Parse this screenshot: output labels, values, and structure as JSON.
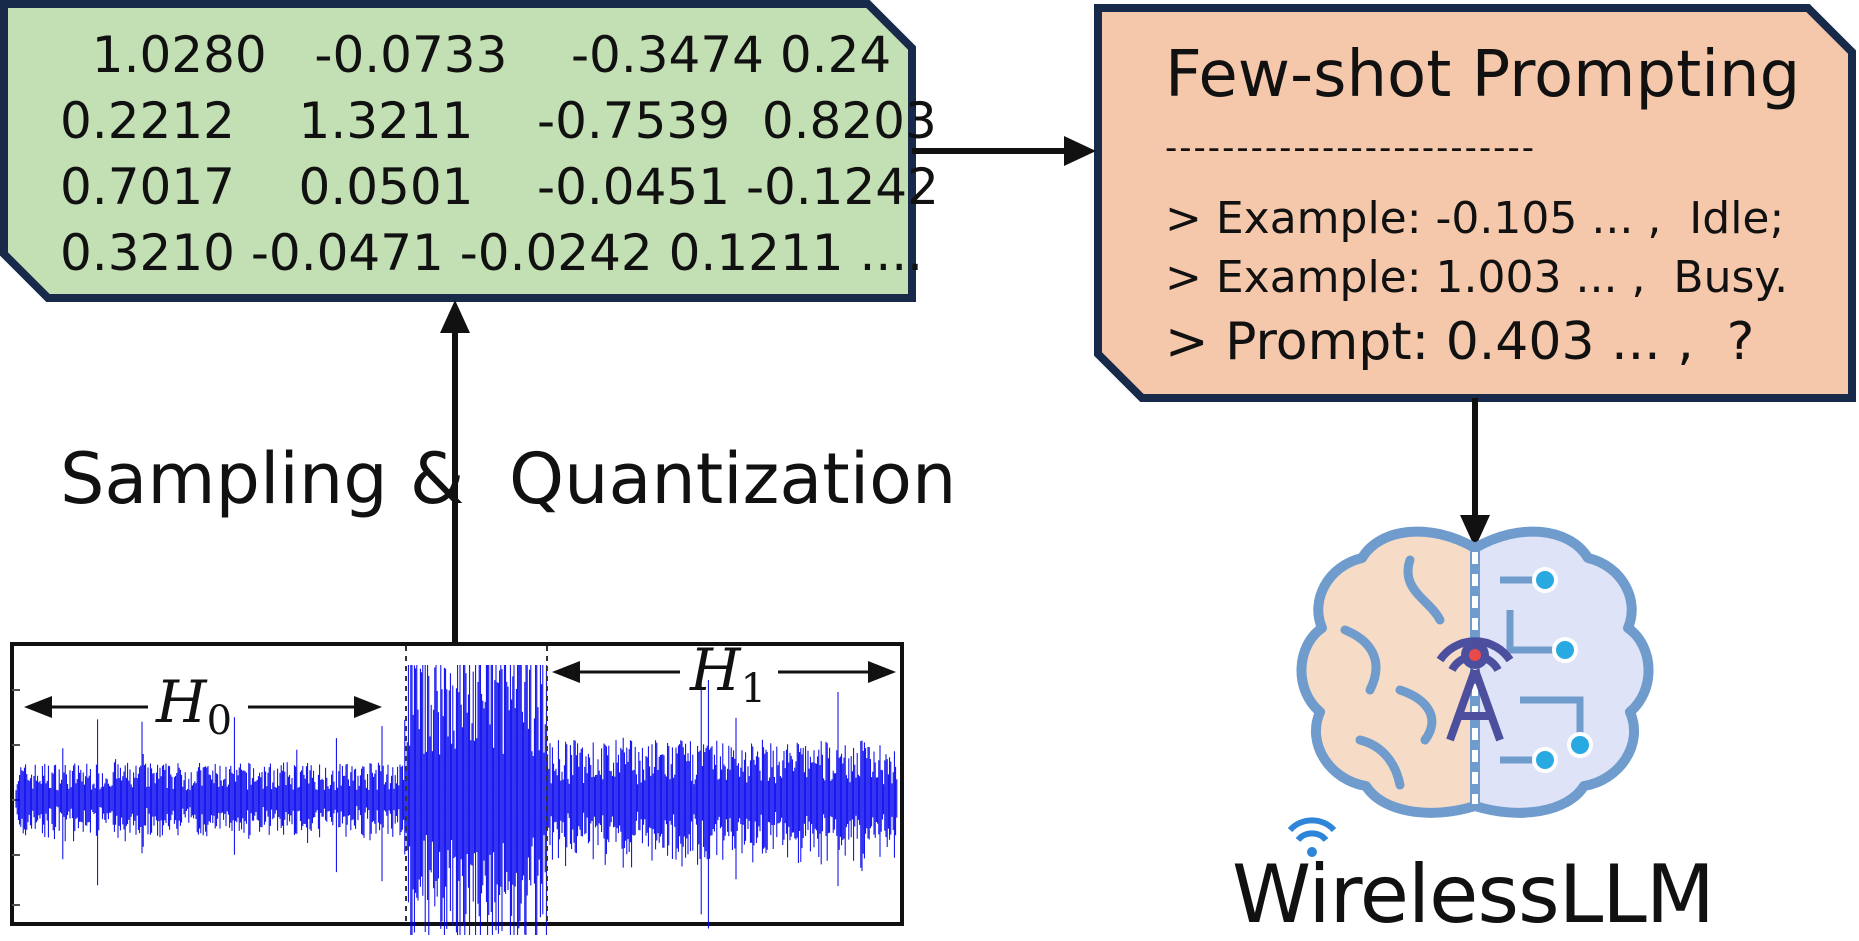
{
  "data_box": {
    "rows": [
      "  1.0280   -0.0733    -0.3474 0.24",
      "0.2212    1.3211    -0.7539  0.8203",
      "0.7017    0.0501    -0.0451 -0.1242",
      "0.3210 -0.0471 -0.0242 0.1211 ...."
    ],
    "fill": "#c3dfb4",
    "border": "#172a4a"
  },
  "prompt_box": {
    "title": "Few-shot Prompting",
    "divider": "--------------------------",
    "examples": [
      "> Example: -0.105 ... ,  Idle;",
      "> Example: 1.003 ... ,  Busy."
    ],
    "prompt": "> Prompt: 0.403 ... ,  ?",
    "fill": "#f6c8ab",
    "border": "#172a4a"
  },
  "edge_label": "Sampling &  Quantization",
  "waveform": {
    "h0_label": "H",
    "h0_sub": "0",
    "h1_label": "H",
    "h1_sub": "1",
    "signal_color": "#0000ee"
  },
  "logo": {
    "name": "WirelessLLM",
    "brain_left_color": "#f6dcc6",
    "brain_right_color": "#dfe3f8",
    "outline_color": "#6f9ccc",
    "node_color": "#29a9e1",
    "tower_color": "#4b4f9e"
  }
}
